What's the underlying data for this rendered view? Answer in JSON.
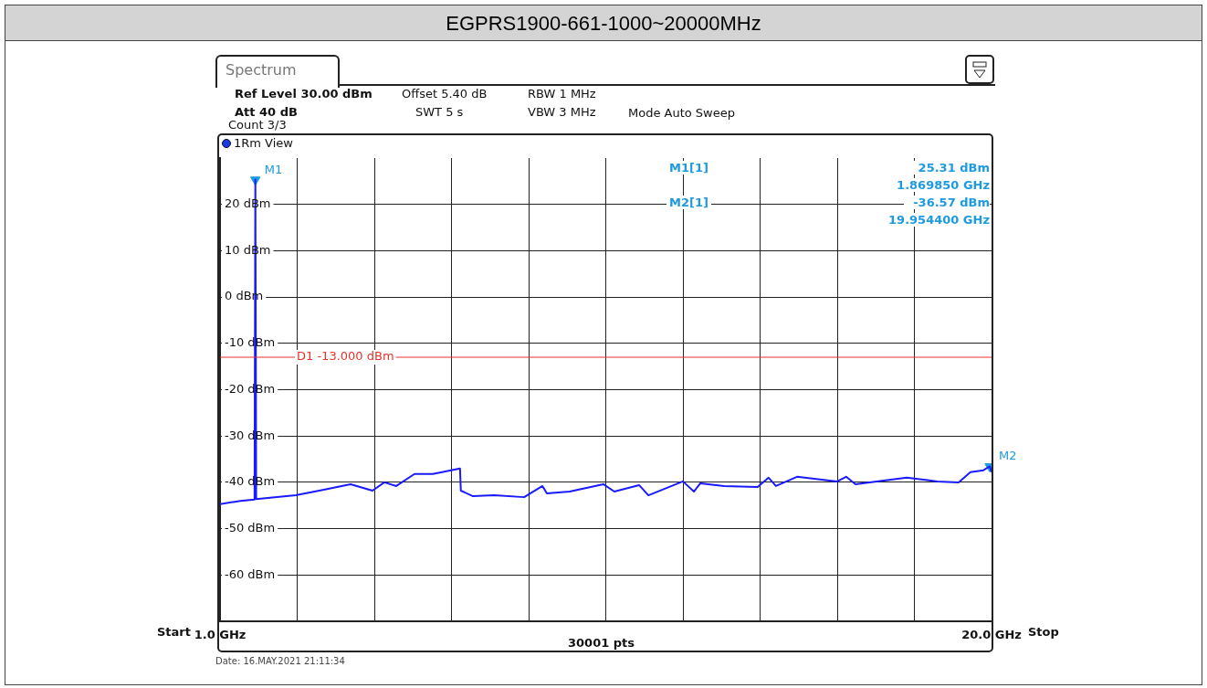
{
  "chart_data": {
    "type": "line",
    "title": "EGPRS1900-661-1000~20000MHz",
    "xlim": [
      1,
      20
    ],
    "xticks": [
      {
        "value": 1,
        "label": "1.0 GHz"
      },
      {
        "value": 2.9,
        "label": null
      },
      {
        "value": 4.8,
        "label": null
      },
      {
        "value": 6.7,
        "label": null
      },
      {
        "value": 8.6,
        "label": null
      },
      {
        "value": 10.5,
        "label": null
      },
      {
        "value": 12.4,
        "label": null
      },
      {
        "value": 14.3,
        "label": null
      },
      {
        "value": 16.2,
        "label": null
      },
      {
        "value": 18.1,
        "label": null
      },
      {
        "value": 20,
        "label": "20.0 GHz"
      }
    ],
    "ylim": [
      -70,
      30
    ],
    "yticks": [
      {
        "value": -60,
        "label": "-60 dBm"
      },
      {
        "value": -50,
        "label": "-50 dBm"
      },
      {
        "value": -40,
        "label": "-40 dBm"
      },
      {
        "value": -30,
        "label": "-30 dBm"
      },
      {
        "value": -20,
        "label": "-20 dBm"
      },
      {
        "value": -10,
        "label": "-10 dBm"
      },
      {
        "value": 0,
        "label": "0 dBm"
      },
      {
        "value": 10,
        "label": "10 dBm"
      },
      {
        "value": 20,
        "label": "20 dBm"
      }
    ],
    "grid": true,
    "legend": false,
    "marker": "none",
    "line_style": "solid",
    "series": [
      {
        "color": "#1a1aff",
        "x": [
          1,
          1.5,
          1.85,
          1.86985,
          1.89,
          2.866,
          3.5,
          4.215,
          4.755,
          5.047,
          5.34,
          5.79,
          6.24,
          6.69,
          6.91,
          6.93,
          7.23,
          7.75,
          8.49,
          8.94,
          9.05,
          9.61,
          10.44,
          10.71,
          11.32,
          11.55,
          12.4,
          12.67,
          12.83,
          13.41,
          14.24,
          14.51,
          14.69,
          15.21,
          16.2,
          16.42,
          16.65,
          17.17,
          17.91,
          18.67,
          19.19,
          19.48,
          19.8,
          19.9544,
          20
        ],
        "values": [
          -44.7,
          -44,
          -43.7,
          25.31,
          -43.6,
          -42.8,
          -41.7,
          -40.4,
          -41.8,
          -40,
          -40.8,
          -38.2,
          -38.2,
          -37.4,
          -37,
          -41.8,
          -43,
          -42.8,
          -43.2,
          -40.8,
          -42.4,
          -42,
          -40.4,
          -42,
          -40.6,
          -42.8,
          -39.8,
          -42,
          -40.2,
          -40.8,
          -41,
          -39,
          -40.8,
          -38.8,
          -39.8,
          -38.8,
          -40.4,
          -39.8,
          -39,
          -39.8,
          -40,
          -37.8,
          -37.4,
          -36.57,
          -37.8
        ]
      },
      {
        "type": "scatter",
        "name": "M1",
        "color": "#1e9be0",
        "marker": "triangle",
        "x": [
          1.86985
        ],
        "values": [
          25.31
        ]
      },
      {
        "type": "scatter",
        "name": "M2",
        "color": "#1e9be0",
        "marker": "triangle",
        "x": [
          19.9544
        ],
        "values": [
          -36.57
        ]
      }
    ],
    "ref_lines": [
      {
        "axis": "y",
        "value": -13,
        "label": "D1 -13.000 dBm",
        "color": "#e8322a",
        "line_style": "solid"
      }
    ],
    "annotations": [
      "Spectrum",
      "Ref Level 30.00 dBm",
      "Offset 5.40 dB",
      "RBW 1 MHz",
      "Att 40 dB",
      "SWT 5 s",
      "VBW 3 MHz",
      "Mode Auto Sweep",
      "Count 3/3",
      "1Rm View",
      "M1[1]",
      "25.31 dBm",
      "1.869850 GHz",
      "M2[1]",
      "-36.57 dBm",
      "19.954400 GHz",
      "30001 pts",
      "Date: 16.MAY.2021 21:11:34",
      "Start",
      "Stop"
    ]
  }
}
